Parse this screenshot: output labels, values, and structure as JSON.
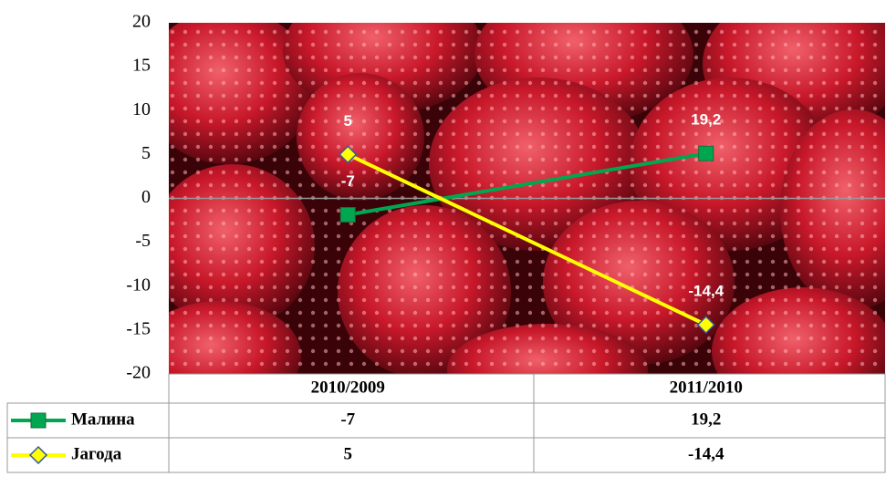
{
  "chart_data": {
    "type": "line",
    "categories": [
      "2010/2009",
      "2011/2010"
    ],
    "series": [
      {
        "name": "Малина",
        "color": "#00a650",
        "marker": "square",
        "axis": "y2",
        "values": [
          -7,
          19.2
        ],
        "value_labels": [
          "-7",
          "19,2"
        ]
      },
      {
        "name": "Јагода",
        "color": "#ffff00",
        "marker": "diamond",
        "values": [
          5,
          -14.4
        ],
        "value_labels": [
          "5",
          "-14,4"
        ]
      }
    ],
    "ylim": [
      -20,
      20
    ],
    "yticks": [
      -20,
      -15,
      -10,
      -5,
      0,
      5,
      10,
      15,
      20
    ],
    "y2lim": [
      -75,
      75
    ]
  }
}
